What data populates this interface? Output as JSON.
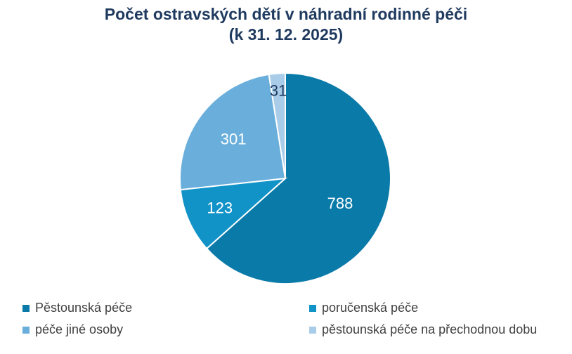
{
  "chart_data": {
    "type": "pie",
    "title": "Počet ostravských dětí v náhradní rodinné péči",
    "subtitle": "(k 31. 12. 2025)",
    "categories": [
      "Pěstounská péče",
      "poručenská péče",
      "péče jiné osoby",
      "pěstounská péče na přechodnou dobu"
    ],
    "values": [
      788,
      123,
      301,
      31
    ],
    "colors": [
      "#0a7aa8",
      "#1193c8",
      "#6aafdc",
      "#a9cde9"
    ],
    "label_colors": [
      "#ffffff",
      "#ffffff",
      "#ffffff",
      "#1f3a5f"
    ],
    "legend_position": "bottom"
  }
}
